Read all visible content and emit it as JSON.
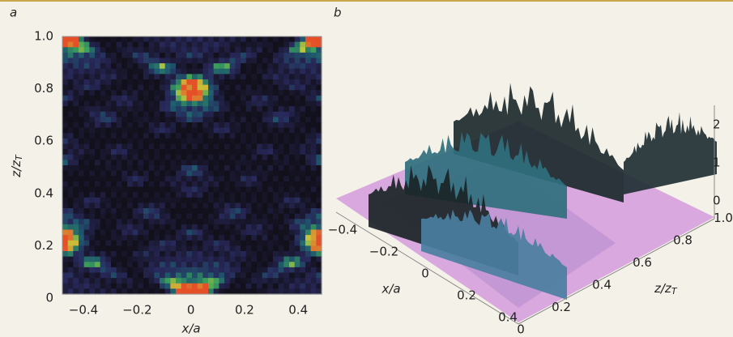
{
  "panels": [
    {
      "label": "a",
      "x_label": {
        "text": "x/a"
      },
      "y_label": {
        "text": "z/z",
        "sub": "T"
      },
      "x_ticks": [
        "−0.4",
        "−0.2",
        "0",
        "0.2",
        "0.4"
      ],
      "y_ticks": [
        "0",
        "0.2",
        "0.4",
        "0.6",
        "0.8",
        "1.0"
      ]
    },
    {
      "label": "b",
      "x_label": {
        "text": "x/a"
      },
      "z_label": {
        "text": "z/z",
        "sub": "T"
      },
      "x_ticks": [
        "−0.4",
        "−0.2",
        "0",
        "0.2",
        "0.4"
      ],
      "z_ticks": [
        "0",
        "0.2",
        "0.4",
        "0.6",
        "0.8",
        "1.0"
      ],
      "v_ticks": [
        "0",
        "1",
        "2"
      ]
    }
  ]
}
